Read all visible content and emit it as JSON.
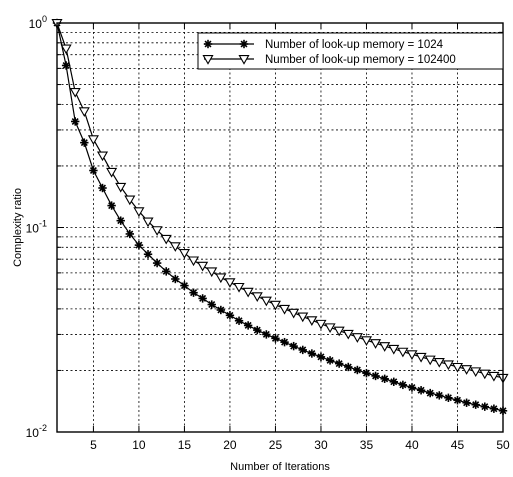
{
  "chart_data": {
    "type": "line",
    "title": "",
    "xlabel": "Number of Iterations",
    "ylabel": "Complexity ratio",
    "xlim": [
      1,
      50
    ],
    "ylim": [
      0.01,
      1
    ],
    "yscale": "log",
    "grid": true,
    "legend_position": "top-right",
    "x_ticks": [
      5,
      10,
      15,
      20,
      25,
      30,
      35,
      40,
      45,
      50
    ],
    "x_tick_labels": [
      "5",
      "10",
      "15",
      "20",
      "25",
      "30",
      "35",
      "40",
      "45",
      "50"
    ],
    "y_tick_labels": [
      {
        "base": "10",
        "exp": "0"
      },
      {
        "base": "10",
        "exp": "-1"
      },
      {
        "base": "10",
        "exp": "-2"
      }
    ],
    "x": [
      1,
      2,
      3,
      4,
      5,
      6,
      7,
      8,
      9,
      10,
      11,
      12,
      13,
      14,
      15,
      16,
      17,
      18,
      19,
      20,
      21,
      22,
      23,
      24,
      25,
      26,
      27,
      28,
      29,
      30,
      31,
      32,
      33,
      34,
      35,
      36,
      37,
      38,
      39,
      40,
      41,
      42,
      43,
      44,
      45,
      46,
      47,
      48,
      49,
      50
    ],
    "series": [
      {
        "name": "Number of look-up memory = 1024",
        "marker": "star",
        "color": "#000000",
        "values": [
          1.0,
          0.62,
          0.33,
          0.26,
          0.19,
          0.156,
          0.128,
          0.108,
          0.093,
          0.082,
          0.074,
          0.067,
          0.061,
          0.056,
          0.052,
          0.048,
          0.045,
          0.042,
          0.0395,
          0.0372,
          0.035,
          0.0332,
          0.0315,
          0.03,
          0.0287,
          0.0275,
          0.0263,
          0.0252,
          0.0242,
          0.0233,
          0.0224,
          0.0216,
          0.0208,
          0.0201,
          0.0194,
          0.0188,
          0.0182,
          0.0176,
          0.017,
          0.0165,
          0.016,
          0.0155,
          0.0151,
          0.0147,
          0.0143,
          0.0139,
          0.0136,
          0.0133,
          0.013,
          0.0127
        ]
      },
      {
        "name": "Number of look-up memory = 102400",
        "marker": "triangle-down",
        "color": "#000000",
        "values": [
          1.0,
          0.75,
          0.46,
          0.37,
          0.27,
          0.225,
          0.187,
          0.158,
          0.137,
          0.12,
          0.107,
          0.097,
          0.088,
          0.081,
          0.075,
          0.069,
          0.065,
          0.061,
          0.057,
          0.054,
          0.0512,
          0.0485,
          0.0461,
          0.0439,
          0.0419,
          0.04,
          0.0383,
          0.0367,
          0.0352,
          0.0338,
          0.0325,
          0.0313,
          0.0302,
          0.0291,
          0.0281,
          0.0272,
          0.0263,
          0.0255,
          0.0247,
          0.024,
          0.0233,
          0.0226,
          0.022,
          0.0214,
          0.0208,
          0.0203,
          0.0198,
          0.0193,
          0.0188,
          0.0184
        ]
      }
    ]
  }
}
